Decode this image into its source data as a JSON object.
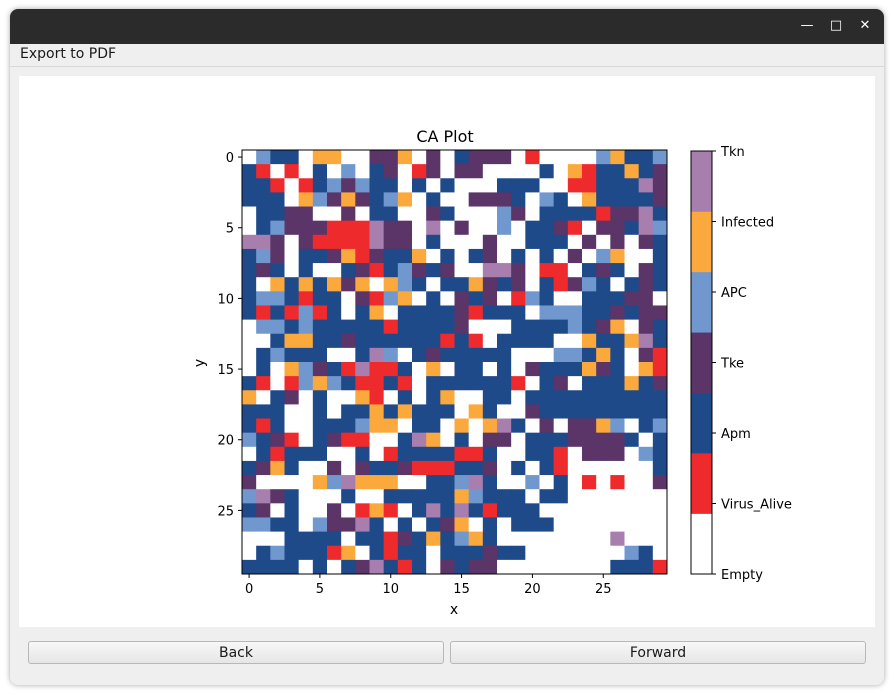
{
  "window": {
    "close_glyph": "✕",
    "maximize_glyph": "□",
    "minimize_glyph": "—"
  },
  "menu": {
    "export_label": "Export to PDF"
  },
  "buttons": {
    "back_label": "Back",
    "forward_label": "Forward"
  },
  "chart_data": {
    "type": "heatmap",
    "title": "CA Plot",
    "xlabel": "x",
    "ylabel": "y",
    "xticks": [
      0,
      5,
      10,
      15,
      20,
      25
    ],
    "yticks": [
      0,
      5,
      10,
      15,
      20,
      25
    ],
    "xlim": [
      -0.5,
      29.5
    ],
    "ylim": [
      29.5,
      -0.5
    ],
    "legend": {
      "type": "colorbar",
      "placement": "right",
      "labels": [
        "Empty",
        "Virus_Alive",
        "Apm",
        "Tke",
        "APC",
        "Infected",
        "Tkn"
      ],
      "colors": [
        "#ffffff",
        "#ee2a2c",
        "#1f4a8a",
        "#5b3468",
        "#7098cf",
        "#fba83d",
        "#a87eae"
      ]
    },
    "encoding": "rows[y][x], one character per cell: 0=Empty 1=Virus_Alive 2=Apm 3=Tke 4=APC 5=Infected 6=Tkn",
    "rows": [
      "042205500335030233301000045224",
      "210102040230130330000205122523",
      "221012434220202000222001122263",
      "222054353245020033320420522223",
      "022330030220032000430222213362",
      "024333111633060300402231033264",
      "663031111633020003002220303032",
      "243022351322502023020203045002",
      "232020023124323006630110232032",
      "205252535054202253230213420232",
      "244212203145020323014200222330",
      "212141202502222312220444223233",
      "044242222212222300022224235032",
      "002552232222221210222200522562",
      "024222002640232222200044252031",
      "020543216112050220203222532051",
      "210145421121022222210230222523",
      "502302005102025002202222222222",
      "222002022525222052003222222222",
      "212002224550220505620303354024",
      "423102311002650203302223333202",
      "021222002012222112002210333042",
      "235200303223111223020210000002",
      "300005465550022462004020101003",
      "463200020022222542220220000000",
      "230200301510262621222000000000",
      "442204336202023502022200000000",
      "000222202213252452000000006000",
      "024222150212202223220000000420",
      "222202023621203233000000002221"
    ]
  }
}
